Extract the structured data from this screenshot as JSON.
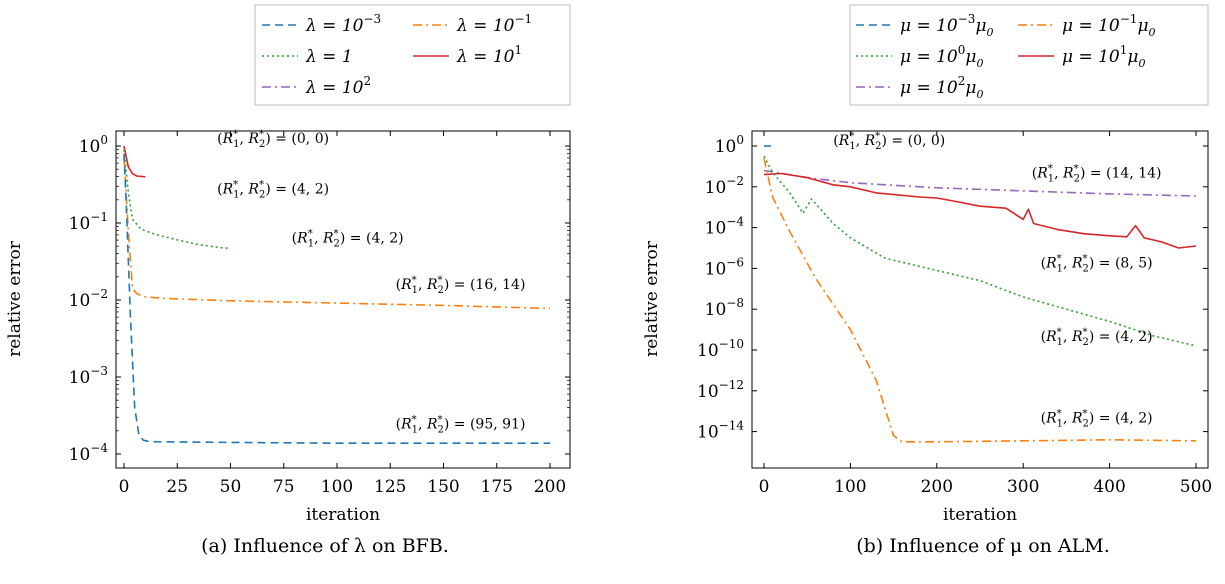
{
  "colors": {
    "blue": "#1f77b4",
    "orange": "#ff7f0e",
    "green": "#2ca02c",
    "red": "#d62728",
    "purple": "#9467bd"
  },
  "chart_data": [
    {
      "type": "line",
      "caption": "(a) Influence of λ on BFB.",
      "xlabel": "iteration",
      "ylabel": "relative error",
      "xlim": [
        0,
        200
      ],
      "ylim_log10": [
        -4,
        0
      ],
      "yscale": "log",
      "grid": false,
      "legend_position": "above",
      "x_ticks": [
        0,
        25,
        50,
        75,
        100,
        125,
        150,
        175,
        200
      ],
      "y_ticks": [
        {
          "base": "10",
          "exp": "0",
          "value": 0
        },
        {
          "base": "10",
          "exp": "−1",
          "value": -1
        },
        {
          "base": "10",
          "exp": "−2",
          "value": -2
        },
        {
          "base": "10",
          "exp": "−3",
          "value": -3
        },
        {
          "base": "10",
          "exp": "−4",
          "value": -4
        }
      ],
      "legend": [
        {
          "var": "λ",
          "base": "10",
          "exp": "−3",
          "color": "blue",
          "dash": "dashed"
        },
        {
          "var": "λ",
          "base": "10",
          "exp": "−1",
          "color": "orange",
          "dash": "dashdot"
        },
        {
          "var": "λ",
          "base": "1",
          "exp": "",
          "color": "green",
          "dash": "dotted"
        },
        {
          "var": "λ",
          "base": "10",
          "exp": "1",
          "color": "red",
          "dash": "solid"
        },
        {
          "var": "λ",
          "base": "10",
          "exp": "2",
          "color": "purple",
          "dash": "dashdot"
        }
      ],
      "series": [
        {
          "color": "red",
          "dash": "solid",
          "points": [
            [
              0,
              0
            ],
            [
              2,
              -0.27
            ],
            [
              4,
              -0.36
            ],
            [
              6,
              -0.39
            ],
            [
              10,
              -0.4
            ]
          ]
        },
        {
          "color": "green",
          "dash": "dotted",
          "points": [
            [
              0,
              -0.05
            ],
            [
              2,
              -0.6
            ],
            [
              4,
              -0.95
            ],
            [
              8,
              -1.08
            ],
            [
              15,
              -1.15
            ],
            [
              25,
              -1.22
            ],
            [
              35,
              -1.28
            ],
            [
              45,
              -1.32
            ],
            [
              50,
              -1.33
            ]
          ]
        },
        {
          "color": "orange",
          "dash": "dashdot",
          "points": [
            [
              0,
              -0.15
            ],
            [
              2,
              -1.1
            ],
            [
              4,
              -1.85
            ],
            [
              6,
              -1.92
            ],
            [
              10,
              -1.96
            ],
            [
              20,
              -1.98
            ],
            [
              50,
              -2.01
            ],
            [
              100,
              -2.04
            ],
            [
              150,
              -2.07
            ],
            [
              200,
              -2.11
            ]
          ]
        },
        {
          "color": "blue",
          "dash": "dashed",
          "points": [
            [
              0,
              -0.1
            ],
            [
              1,
              -0.7
            ],
            [
              3,
              -2.2
            ],
            [
              5,
              -3.4
            ],
            [
              7,
              -3.75
            ],
            [
              9,
              -3.82
            ],
            [
              12,
              -3.84
            ],
            [
              50,
              -3.85
            ],
            [
              100,
              -3.86
            ],
            [
              150,
              -3.86
            ],
            [
              200,
              -3.86
            ]
          ]
        }
      ],
      "annotations": [
        {
          "text": "(0, 0)",
          "x": 70,
          "y": 0.04
        },
        {
          "text": "(4, 2)",
          "x": 70,
          "y": -0.62
        },
        {
          "text": "(4, 2)",
          "x": 105,
          "y": -1.25
        },
        {
          "text": "(16, 14)",
          "x": 158,
          "y": -1.86
        },
        {
          "text": "(95, 91)",
          "x": 158,
          "y": -3.67
        }
      ]
    },
    {
      "type": "line",
      "caption": "(b) Influence of μ on ALM.",
      "xlabel": "iteration",
      "ylabel": "relative error",
      "xlim": [
        0,
        500
      ],
      "ylim_log10": [
        -15,
        0
      ],
      "yscale": "log",
      "grid": false,
      "legend_position": "above",
      "x_ticks": [
        0,
        100,
        200,
        300,
        400,
        500
      ],
      "y_ticks": [
        {
          "base": "10",
          "exp": "0",
          "value": 0
        },
        {
          "base": "10",
          "exp": "−2",
          "value": -2
        },
        {
          "base": "10",
          "exp": "−4",
          "value": -4
        },
        {
          "base": "10",
          "exp": "−6",
          "value": -6
        },
        {
          "base": "10",
          "exp": "−8",
          "value": -8
        },
        {
          "base": "10",
          "exp": "−10",
          "value": -10
        },
        {
          "base": "10",
          "exp": "−12",
          "value": -12
        },
        {
          "base": "10",
          "exp": "−14",
          "value": -14
        }
      ],
      "legend": [
        {
          "var": "μ",
          "base": "10",
          "exp": "−3",
          "color": "blue",
          "dash": "dashed"
        },
        {
          "var": "μ",
          "base": "10",
          "exp": "−1",
          "color": "orange",
          "dash": "dashdot"
        },
        {
          "var": "μ",
          "base": "10",
          "exp": "0",
          "color": "green",
          "dash": "dotted"
        },
        {
          "var": "μ",
          "base": "10",
          "exp": "1",
          "color": "red",
          "dash": "solid"
        },
        {
          "var": "μ",
          "base": "10",
          "exp": "2",
          "color": "purple",
          "dash": "dashdot"
        }
      ],
      "series": [
        {
          "color": "blue",
          "dash": "dashed",
          "points": [
            [
              0,
              0
            ],
            [
              8,
              0
            ]
          ]
        },
        {
          "color": "purple",
          "dash": "dashdot",
          "points": [
            [
              0,
              -1.2
            ],
            [
              50,
              -1.55
            ],
            [
              100,
              -1.8
            ],
            [
              200,
              -2.05
            ],
            [
              300,
              -2.2
            ],
            [
              400,
              -2.35
            ],
            [
              500,
              -2.45
            ]
          ]
        },
        {
          "color": "red",
          "dash": "solid",
          "points": [
            [
              0,
              -1.4
            ],
            [
              20,
              -1.35
            ],
            [
              50,
              -1.55
            ],
            [
              80,
              -1.9
            ],
            [
              100,
              -2.0
            ],
            [
              130,
              -2.3
            ],
            [
              180,
              -2.5
            ],
            [
              200,
              -2.55
            ],
            [
              220,
              -2.7
            ],
            [
              250,
              -2.95
            ],
            [
              280,
              -3.05
            ],
            [
              300,
              -3.6
            ],
            [
              306,
              -3.1
            ],
            [
              312,
              -3.8
            ],
            [
              340,
              -4.1
            ],
            [
              370,
              -4.3
            ],
            [
              400,
              -4.4
            ],
            [
              420,
              -4.45
            ],
            [
              430,
              -3.9
            ],
            [
              440,
              -4.5
            ],
            [
              460,
              -4.7
            ],
            [
              480,
              -5.0
            ],
            [
              500,
              -4.9
            ]
          ]
        },
        {
          "color": "green",
          "dash": "dotted",
          "points": [
            [
              0,
              -0.5
            ],
            [
              10,
              -1.3
            ],
            [
              30,
              -2.3
            ],
            [
              45,
              -3.3
            ],
            [
              55,
              -2.6
            ],
            [
              80,
              -3.8
            ],
            [
              100,
              -4.5
            ],
            [
              140,
              -5.5
            ],
            [
              200,
              -6.1
            ],
            [
              250,
              -6.6
            ],
            [
              300,
              -7.4
            ],
            [
              350,
              -8.0
            ],
            [
              400,
              -8.6
            ],
            [
              450,
              -9.3
            ],
            [
              500,
              -9.8
            ]
          ]
        },
        {
          "color": "orange",
          "dash": "dashdot",
          "points": [
            [
              0,
              -0.6
            ],
            [
              10,
              -2.5
            ],
            [
              30,
              -4.2
            ],
            [
              60,
              -6.5
            ],
            [
              100,
              -9.0
            ],
            [
              130,
              -11.5
            ],
            [
              150,
              -14.2
            ],
            [
              160,
              -14.5
            ],
            [
              200,
              -14.5
            ],
            [
              300,
              -14.45
            ],
            [
              400,
              -14.4
            ],
            [
              500,
              -14.45
            ]
          ]
        }
      ],
      "annotations": [
        {
          "text": "(0, 0)",
          "x": 145,
          "y": 0.04
        },
        {
          "text": "(14, 14)",
          "x": 385,
          "y": -1.55
        },
        {
          "text": "(8, 5)",
          "x": 385,
          "y": -5.95
        },
        {
          "text": "(4, 2)",
          "x": 385,
          "y": -9.55
        },
        {
          "text": "(4, 2)",
          "x": 385,
          "y": -13.55
        }
      ]
    }
  ]
}
